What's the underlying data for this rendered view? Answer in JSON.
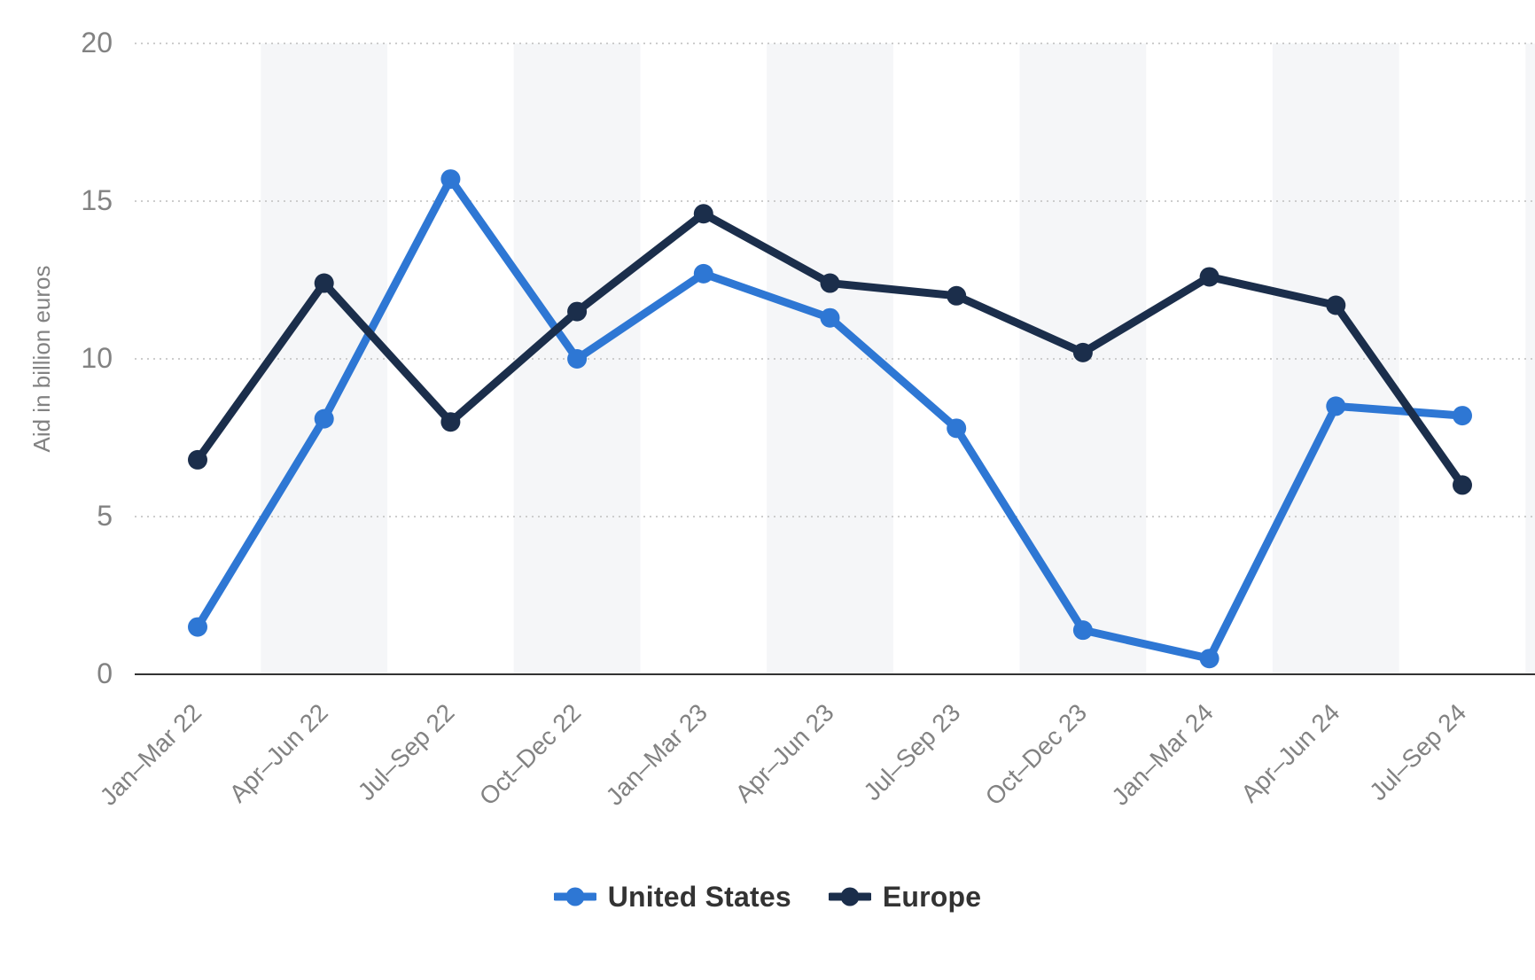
{
  "page": {
    "title": "Aid to Ukraine line chart"
  },
  "chart_data": {
    "type": "line",
    "title": "",
    "xlabel": "",
    "ylabel": "Aid in billion euros",
    "categories": [
      "Jan–Mar 22",
      "Apr–Jun 22",
      "Jul–Sep 22",
      "Oct–Dec 22",
      "Jan–Mar 23",
      "Apr–Jun 23",
      "Jul–Sep 23",
      "Oct–Dec 23",
      "Jan–Mar 24",
      "Apr–Jun 24",
      "Jul–Sep 24"
    ],
    "series": [
      {
        "name": "United States",
        "color": "#2E77D4",
        "values": [
          1.5,
          8.1,
          15.7,
          10.0,
          12.7,
          11.3,
          7.8,
          1.4,
          0.5,
          8.5,
          8.2
        ]
      },
      {
        "name": "Europe",
        "color": "#1B2E4B",
        "values": [
          6.8,
          12.4,
          8.0,
          11.5,
          14.6,
          12.4,
          12.0,
          10.2,
          12.6,
          11.7,
          6.0
        ]
      }
    ],
    "ylim": [
      0,
      20
    ],
    "yticks": [
      0,
      5,
      10,
      15,
      20
    ],
    "grid": "horizontal dotted gridlines",
    "legend_position": "bottom center",
    "alternating_bands": true,
    "colors": {
      "band": "#F5F6F8",
      "gridline": "#CDCDCD",
      "axis_line": "#333333",
      "tick_text": "#828282",
      "legend_text": "#333333",
      "background": "#FFFFFF"
    }
  }
}
